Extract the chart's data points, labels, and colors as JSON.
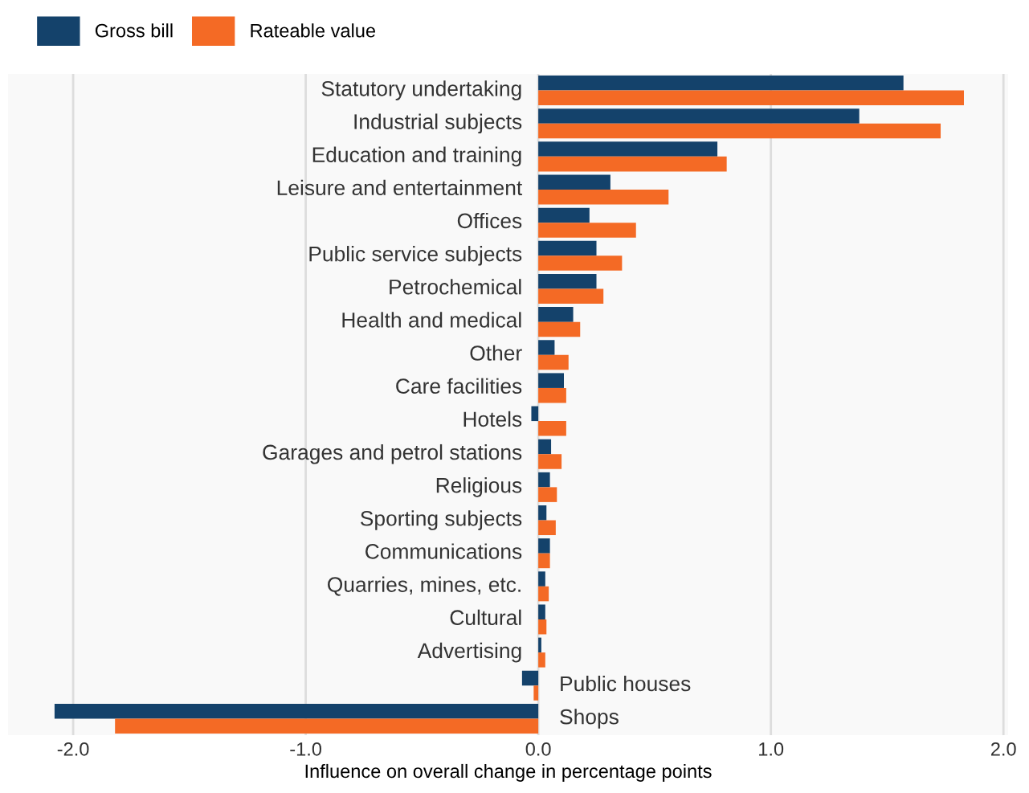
{
  "chart_data": {
    "type": "bar",
    "orientation": "horizontal",
    "xlabel": "Influence on overall change in percentage points",
    "categories": [
      "Statutory undertaking",
      "Industrial subjects",
      "Education and training",
      "Leisure and entertainment",
      "Offices",
      "Public service subjects",
      "Petrochemical",
      "Health and medical",
      "Other",
      "Care facilities",
      "Hotels",
      "Garages and petrol stations",
      "Religious",
      "Sporting subjects",
      "Communications",
      "Quarries, mines, etc.",
      "Cultural",
      "Advertising",
      "Public houses",
      "Shops"
    ],
    "series": [
      {
        "name": "Gross bill",
        "color": "#14426b",
        "values": [
          1.57,
          1.38,
          0.77,
          0.31,
          0.22,
          0.25,
          0.25,
          0.15,
          0.07,
          0.11,
          -0.03,
          0.055,
          0.05,
          0.035,
          0.05,
          0.03,
          0.03,
          0.013,
          -0.07,
          -2.08
        ]
      },
      {
        "name": "Rateable value",
        "color": "#f46a25",
        "values": [
          1.83,
          1.73,
          0.81,
          0.56,
          0.42,
          0.36,
          0.28,
          0.18,
          0.13,
          0.12,
          0.12,
          0.1,
          0.08,
          0.075,
          0.05,
          0.045,
          0.035,
          0.03,
          -0.02,
          -1.82
        ]
      }
    ],
    "xlim": [
      -2.28,
      2.02
    ],
    "xticks": [
      {
        "value": -2,
        "label": "-2.0"
      },
      {
        "value": -1,
        "label": "-1.0"
      },
      {
        "value": 0,
        "label": "0.0"
      },
      {
        "value": 1,
        "label": "1.0"
      },
      {
        "value": 2,
        "label": "2.0"
      }
    ],
    "grid": "x",
    "legend": "top left"
  }
}
